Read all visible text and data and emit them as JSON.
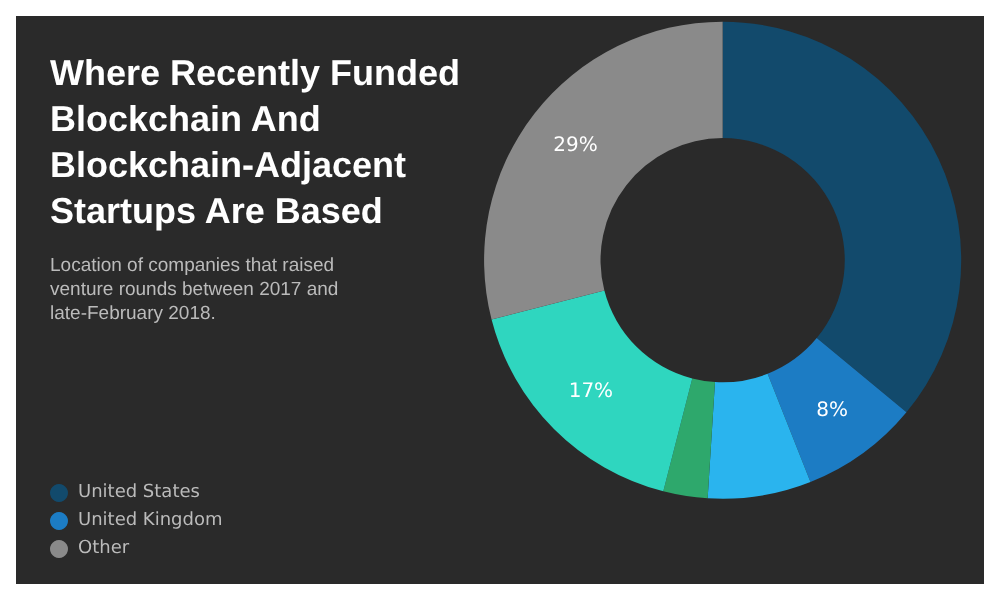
{
  "chart_data": {
    "type": "donut",
    "title": "Where Recently Funded Blockchain And Blockchain-Adjacent Startups Are Based",
    "subtitle": "Location of companies that raised venture rounds between 2017 and late-February 2018.",
    "categories": [
      "United States",
      "United Kingdom",
      null,
      null,
      null,
      "Other"
    ],
    "values": [
      36,
      8,
      7,
      3,
      17,
      29
    ],
    "colors": [
      "#124a6c",
      "#1c7cc4",
      "#2ab4ee",
      "#2ea86c",
      "#2fd6bf",
      "#8a8a8a"
    ],
    "value_labels": [
      null,
      "8%",
      null,
      null,
      "17%",
      "29%"
    ],
    "legend": "bottom left"
  }
}
